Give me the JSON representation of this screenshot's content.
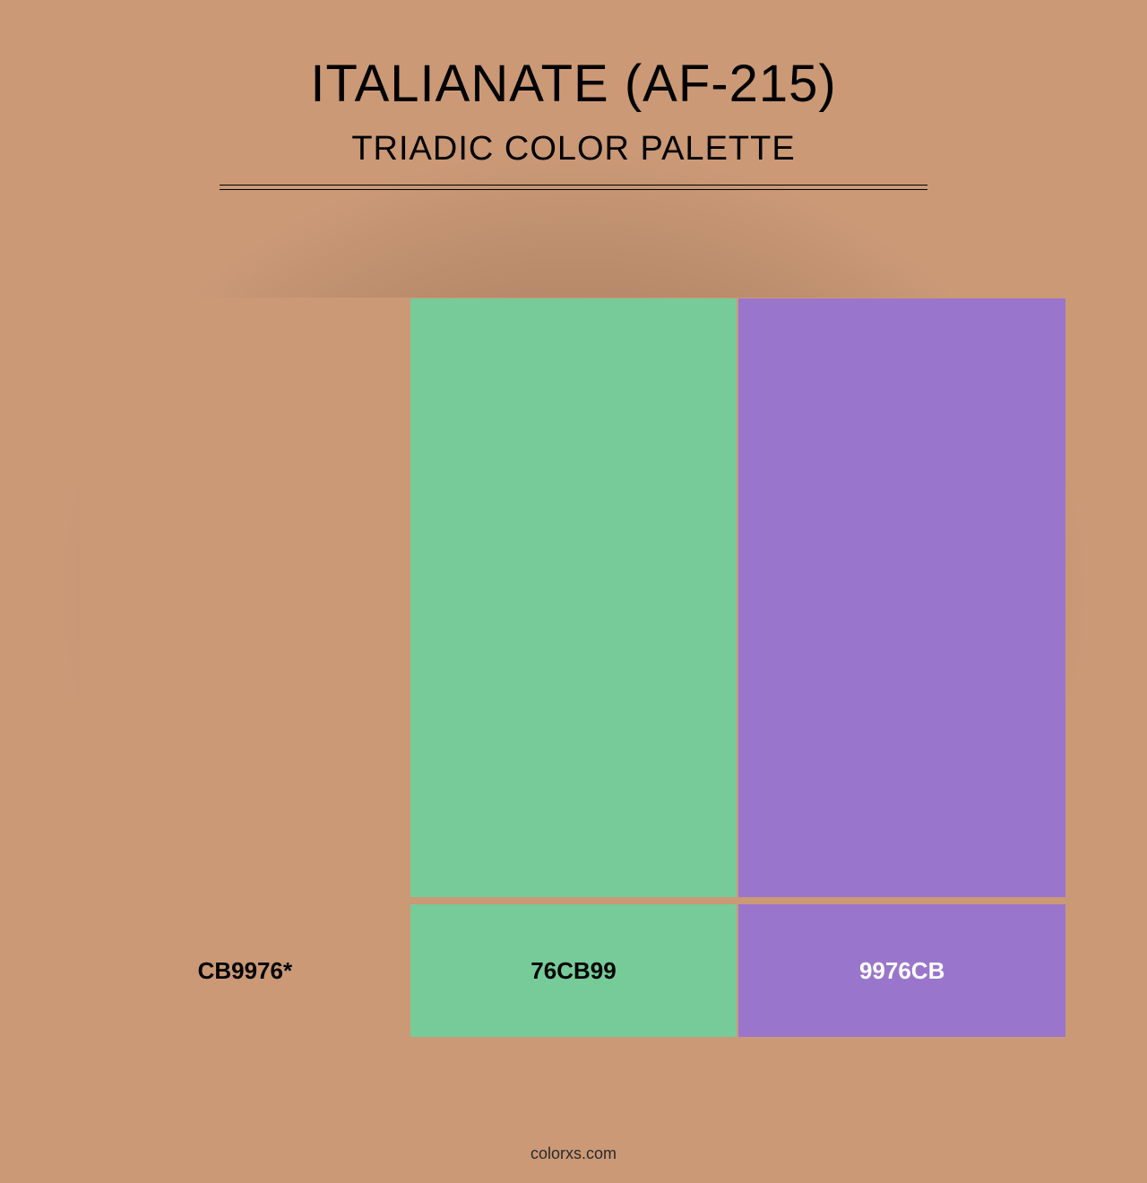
{
  "background_color": "#cb9976",
  "title": "ITALIANATE (AF-215)",
  "subtitle": "TRIADIC COLOR PALETTE",
  "title_color": "#000000",
  "subtitle_color": "#000000",
  "divider_color": "#000000",
  "swatch_border_color": "#cb9976",
  "swatches": [
    {
      "hex": "#cb9976",
      "label": "CB9976*",
      "label_color": "#000000"
    },
    {
      "hex": "#76cb99",
      "label": "76CB99",
      "label_color": "#000000"
    },
    {
      "hex": "#9976cb",
      "label": "9976CB",
      "label_color": "#ffffff"
    }
  ],
  "footer": "colorxs.com",
  "footer_color": "#2a2a2a",
  "vignette_center": "rgba(0,0,0,0.25)"
}
